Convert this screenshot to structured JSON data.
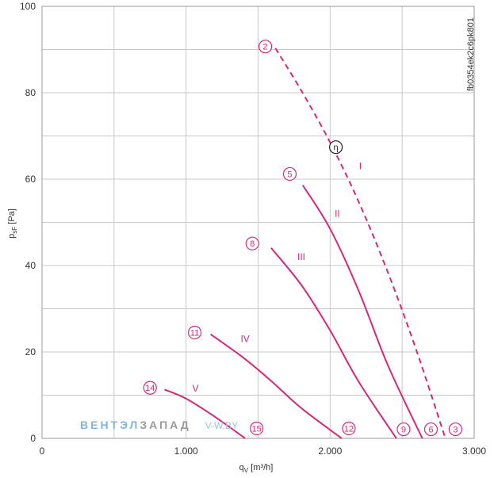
{
  "chart_data": {
    "type": "line",
    "title": "",
    "xlabel": "qV [m³/h]",
    "xlabel_main": "q",
    "xlabel_sub": "V",
    "xlabel_unit": " [m³/h]",
    "ylabel_main": "p",
    "ylabel_sub": "sF",
    "ylabel_unit": " [Pa]",
    "xlim": [
      0,
      3000
    ],
    "ylim": [
      0,
      100
    ],
    "x_ticks": [
      0,
      1000,
      2000,
      3000
    ],
    "x_tick_labels": [
      "0",
      "1.000",
      "2.000",
      "3.000"
    ],
    "x_minor_step": 500,
    "y_ticks": [
      0,
      20,
      40,
      60,
      80,
      100
    ],
    "y_tick_labels": [
      "0",
      "20",
      "40",
      "60",
      "80",
      "100"
    ],
    "y_minor_step": 10,
    "grid": true,
    "series": [
      {
        "name": "I",
        "dashed": true,
        "x": [
          1620,
          1800,
          2000,
          2200,
          2400,
          2600,
          2800
        ],
        "y": [
          90.3,
          80.5,
          68.5,
          54.6,
          38.5,
          20.3,
          0
        ]
      },
      {
        "name": "II",
        "dashed": false,
        "x": [
          1810,
          2000,
          2200,
          2400,
          2640
        ],
        "y": [
          58.6,
          48.5,
          34,
          17,
          0
        ]
      },
      {
        "name": "III",
        "dashed": false,
        "x": [
          1590,
          1800,
          2000,
          2200,
          2460
        ],
        "y": [
          44.1,
          35.5,
          25,
          13,
          0
        ]
      },
      {
        "name": "IV",
        "dashed": false,
        "x": [
          1170,
          1400,
          1600,
          1800,
          2080
        ],
        "y": [
          24.1,
          18.6,
          13,
          7,
          0
        ]
      },
      {
        "name": "V",
        "dashed": false,
        "x": [
          850,
          1000,
          1200,
          1410
        ],
        "y": [
          11.3,
          9.2,
          5,
          0
        ]
      }
    ],
    "series_labels": [
      {
        "text": "I",
        "x": 2210,
        "y": 63
      },
      {
        "text": "II",
        "x": 2050,
        "y": 52
      },
      {
        "text": "III",
        "x": 1800,
        "y": 42
      },
      {
        "text": "IV",
        "x": 1410,
        "y": 23
      },
      {
        "text": "V",
        "x": 1065,
        "y": 11.6
      }
    ],
    "markers": [
      {
        "label": "2",
        "x": 1550,
        "y": 90.7,
        "black": false
      },
      {
        "label": "η",
        "x": 2040,
        "y": 67.4,
        "black": true
      },
      {
        "label": "5",
        "x": 1720,
        "y": 61.2,
        "black": false
      },
      {
        "label": "8",
        "x": 1460,
        "y": 45.1,
        "black": false
      },
      {
        "label": "11",
        "x": 1060,
        "y": 24.5,
        "black": false
      },
      {
        "label": "14",
        "x": 750,
        "y": 11.7,
        "black": false
      },
      {
        "label": "15",
        "x": 1490,
        "y": 2.3,
        "black": false
      },
      {
        "label": "12",
        "x": 2130,
        "y": 2.3,
        "black": false
      },
      {
        "label": "9",
        "x": 2510,
        "y": 2.1,
        "black": false
      },
      {
        "label": "6",
        "x": 2700,
        "y": 2.1,
        "black": false
      },
      {
        "label": "3",
        "x": 2870,
        "y": 2.1,
        "black": false
      }
    ],
    "drawing_code": "fb0354ek2c6pk801",
    "colors": {
      "curve": "#d6287a",
      "grid": "#c8c8c8",
      "eta_marker": "#222222"
    }
  },
  "watermark": {
    "part1": "ВЕНТЭЛ",
    "part2": "ЗАПАД",
    "part3": "V-W.BY",
    "color1": "#7fb6dc",
    "color2": "#9a9a9a",
    "color3": "#9ac3e2"
  }
}
